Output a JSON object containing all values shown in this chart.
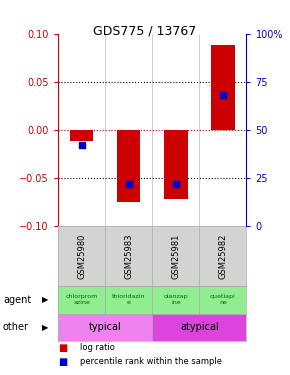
{
  "title": "GDS775 / 13767",
  "samples": [
    "GSM25980",
    "GSM25983",
    "GSM25981",
    "GSM25982"
  ],
  "log_ratio": [
    -0.012,
    -0.075,
    -0.072,
    0.088
  ],
  "percentile_rank": [
    0.42,
    0.22,
    0.22,
    0.68
  ],
  "ylim": [
    -0.1,
    0.1
  ],
  "yticks_left": [
    -0.1,
    -0.05,
    0,
    0.05,
    0.1
  ],
  "yticks_right_labels": [
    "0",
    "25",
    "50",
    "75",
    "100%"
  ],
  "agent_labels": [
    "chlorprom\nazine",
    "thioridazin\ne",
    "olanzap\nine",
    "quetiapi\nne"
  ],
  "agent_color": "#90ee90",
  "other_typical_color": "#ee82ee",
  "other_atypical_color": "#dd44dd",
  "sample_bg_color": "#d3d3d3",
  "bar_color": "#cc0000",
  "dot_color": "#0000cc",
  "left_axis_color": "#cc0000",
  "right_axis_color": "#0000cc"
}
